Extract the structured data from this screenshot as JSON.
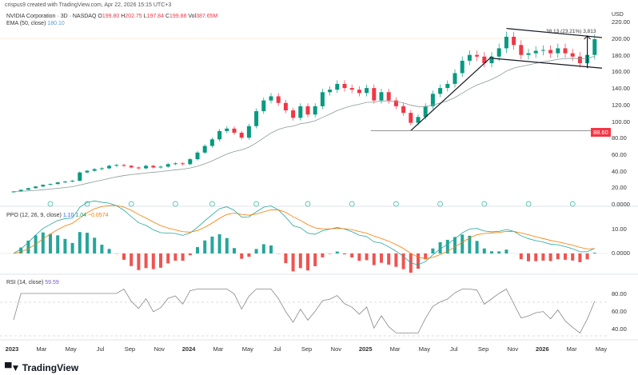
{
  "header": {
    "credit": "crispus9 created with TradingView.com, Apr 22, 2026 15:15 UTC+3",
    "symbol": "NVIDIA Corporation · 3D · NASDAQ",
    "o_label": "O",
    "o": "199.80",
    "h_label": "H",
    "h": "202.75",
    "l_label": "L",
    "l": "197.84",
    "c_label": "C",
    "c": "199.88",
    "vol_label": "Vol",
    "vol": "387.65M",
    "ema_label": "EMA (50, close)",
    "ema": "180.10"
  },
  "ppo": {
    "label": "PPO (12, 26, 9, close)",
    "v1": "1.10",
    "v2": "1.04",
    "v3": "−0.0574"
  },
  "rsi": {
    "label": "RSI (14, close)",
    "v": "59.59"
  },
  "price_axis": {
    "unit": "USD",
    "ticks": [
      "220.00",
      "200.00",
      "180.00",
      "160.00",
      "140.00",
      "120.00",
      "100.00",
      "80.00",
      "60.00",
      "40.00",
      "20.00",
      "0.0000"
    ]
  },
  "price_badge": "88.60",
  "ppo_axis": [
    "10.00",
    "0.0000"
  ],
  "rsi_axis": [
    "80.00",
    "60.00",
    "40.00"
  ],
  "x_axis": [
    {
      "t": "2023",
      "b": true
    },
    {
      "t": "Mar"
    },
    {
      "t": "May"
    },
    {
      "t": "Jul"
    },
    {
      "t": "Sep"
    },
    {
      "t": "Nov"
    },
    {
      "t": "2024",
      "b": true
    },
    {
      "t": "Mar"
    },
    {
      "t": "May"
    },
    {
      "t": "Jul"
    },
    {
      "t": "Sep"
    },
    {
      "t": "Nov"
    },
    {
      "t": "2025",
      "b": true
    },
    {
      "t": "Mar"
    },
    {
      "t": "May"
    },
    {
      "t": "Jul"
    },
    {
      "t": "Sep"
    },
    {
      "t": "Nov"
    },
    {
      "t": "2026",
      "b": true
    },
    {
      "t": "Mar"
    },
    {
      "t": "May"
    }
  ],
  "measure_label": "38.13 (23.21%) 3,813",
  "logo": "TradingView",
  "colors": {
    "up": "#089981",
    "down": "#f23645",
    "ema": "#8a9a9a",
    "badge": "#f23645"
  },
  "chart_data": {
    "type": "candlestick",
    "x_start": "2023-01",
    "x_step": "half-month",
    "closes": [
      15,
      17,
      19,
      21,
      23,
      24,
      26,
      27,
      28,
      38,
      40,
      42,
      43,
      46,
      47,
      46,
      44,
      43,
      46,
      44,
      45,
      48,
      49,
      48,
      54,
      62,
      70,
      78,
      88,
      91,
      86,
      80,
      94,
      112,
      125,
      130,
      122,
      113,
      104,
      118,
      108,
      118,
      135,
      138,
      145,
      140,
      138,
      134,
      140,
      125,
      135,
      125,
      118,
      110,
      98,
      105,
      118,
      133,
      140,
      145,
      158,
      173,
      180,
      178,
      170,
      178,
      188,
      202,
      192,
      180,
      182,
      185,
      186,
      182,
      188,
      182,
      178,
      170,
      180,
      199
    ],
    "ylim": [
      0,
      220
    ],
    "indicators": [
      "EMA 50",
      "PPO 12 26 9",
      "RSI 14"
    ],
    "horizontal_line": 88.6,
    "channel_upper": [
      [
        67,
        212
      ],
      [
        80,
        201
      ]
    ],
    "channel_lower": [
      [
        65,
        176
      ],
      [
        80,
        164
      ]
    ],
    "trend_line": [
      [
        54,
        88.6
      ],
      [
        65,
        178
      ]
    ],
    "measure": [
      [
        78,
        164
      ],
      [
        78,
        203
      ]
    ]
  }
}
